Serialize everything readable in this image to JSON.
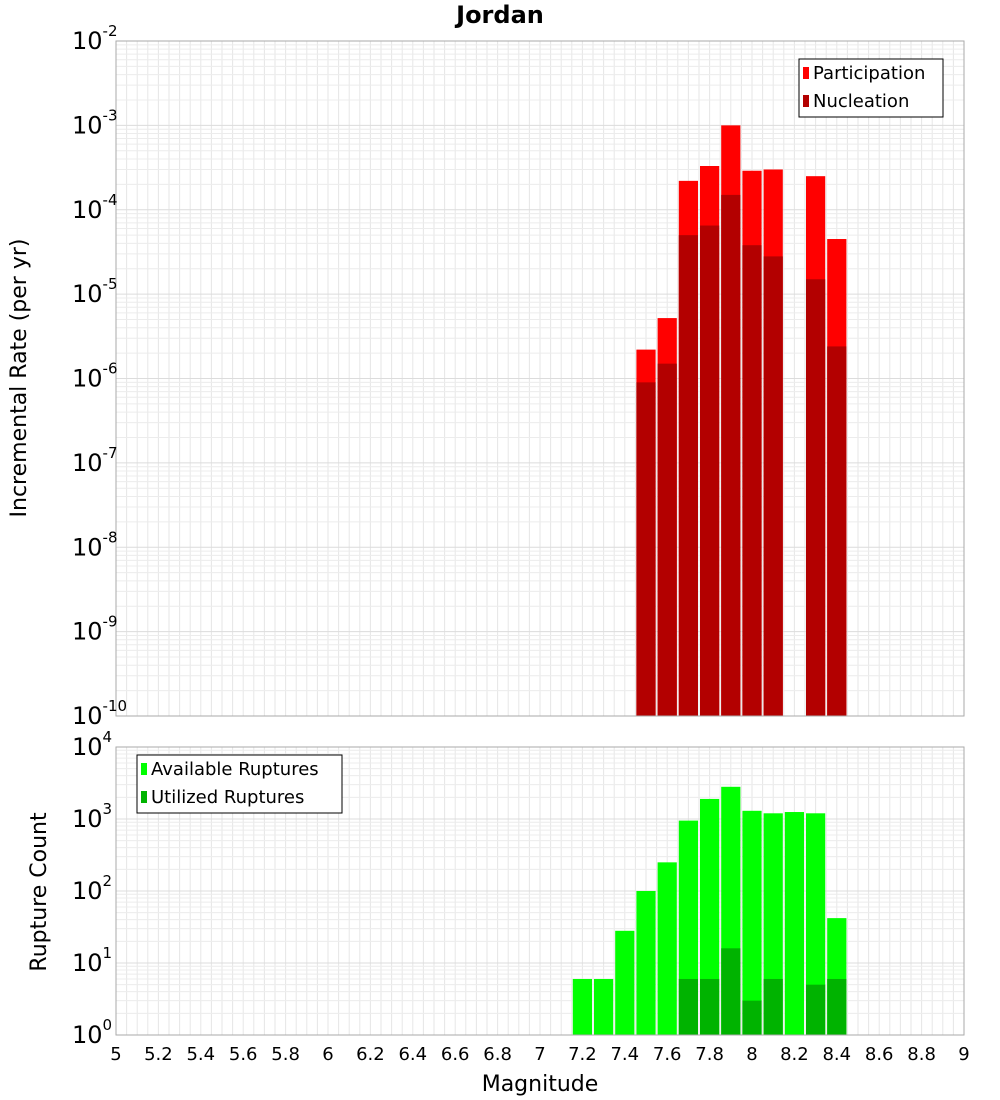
{
  "chart_data": [
    {
      "type": "bar",
      "title": "Jordan",
      "xlabel": "",
      "ylabel": "Incremental Rate (per yr)",
      "yscale": "log",
      "xlim": [
        5,
        9
      ],
      "ylim_exponents": [
        -10,
        -2
      ],
      "legend_position": "top-right",
      "grid": true,
      "bin_width": 0.1,
      "x": [
        7.5,
        7.6,
        7.7,
        7.8,
        7.9,
        8.0,
        8.1,
        8.3,
        8.4
      ],
      "series": [
        {
          "name": "Participation",
          "color": "#ff0000",
          "values": [
            2.2e-06,
            5.2e-06,
            0.00022,
            0.00033,
            0.001,
            0.00029,
            0.0003,
            0.00025,
            4.5e-05
          ]
        },
        {
          "name": "Nucleation",
          "color": "#b30000",
          "values": [
            9e-07,
            1.5e-06,
            5e-05,
            6.5e-05,
            0.00015,
            3.8e-05,
            2.8e-05,
            1.5e-05,
            2.4e-06
          ]
        }
      ]
    },
    {
      "type": "bar",
      "title": "",
      "xlabel": "Magnitude",
      "ylabel": "Rupture Count",
      "yscale": "log",
      "xlim": [
        5,
        9
      ],
      "ylim_exponents": [
        0,
        4
      ],
      "legend_position": "top-left",
      "grid": true,
      "bin_width": 0.1,
      "x": [
        7.1,
        7.2,
        7.3,
        7.4,
        7.5,
        7.6,
        7.7,
        7.8,
        7.9,
        8.0,
        8.1,
        8.2,
        8.3,
        8.4
      ],
      "series": [
        {
          "name": "Available Ruptures",
          "color": "#00ff00",
          "values": [
            1,
            6,
            6,
            28,
            100,
            250,
            950,
            1900,
            2800,
            1300,
            1200,
            1250,
            1200,
            42
          ]
        },
        {
          "name": "Utilized Ruptures",
          "color": "#00b300",
          "values": [
            0,
            0,
            0,
            0,
            1,
            1,
            6,
            6,
            16,
            3,
            6,
            0,
            5,
            6
          ]
        }
      ]
    }
  ],
  "x_ticks": [
    "5",
    "5.2",
    "5.4",
    "5.6",
    "5.8",
    "6",
    "6.2",
    "6.4",
    "6.6",
    "6.8",
    "7",
    "7.2",
    "7.4",
    "7.6",
    "7.8",
    "8",
    "8.2",
    "8.4",
    "8.6",
    "8.8",
    "9"
  ]
}
